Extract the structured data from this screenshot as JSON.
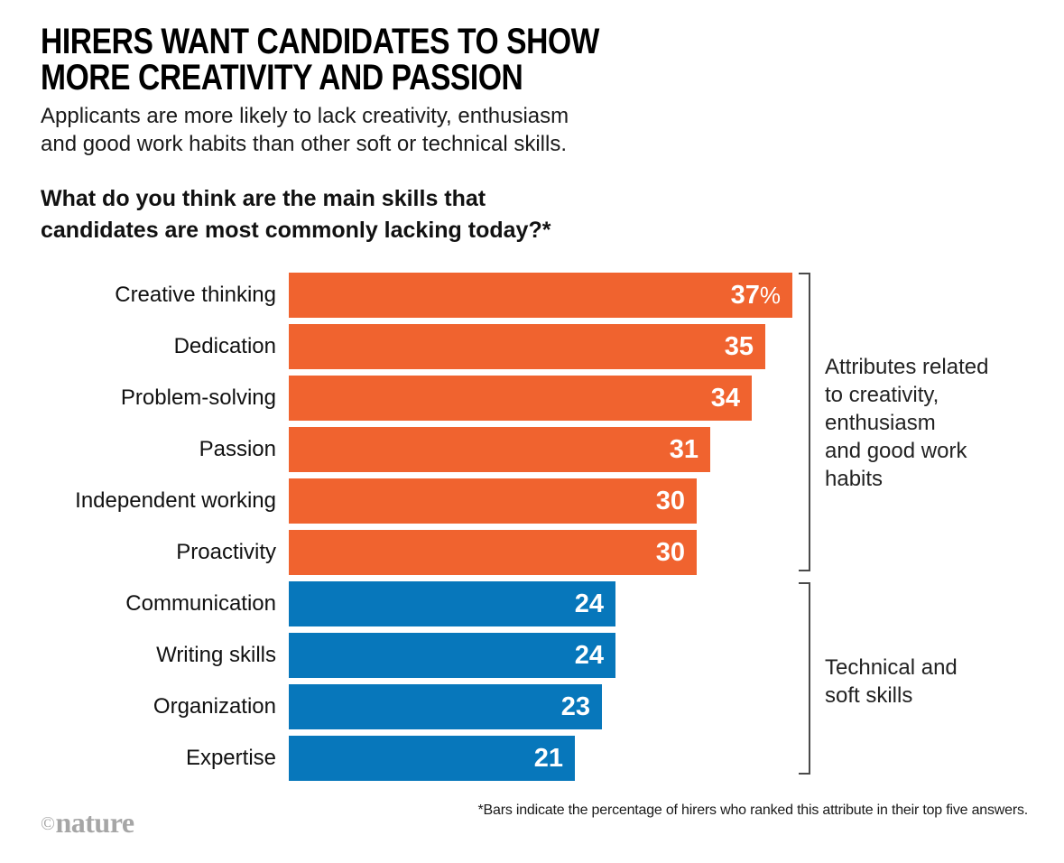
{
  "header": {
    "title": "HIRERS WANT CANDIDATES TO SHOW\nMORE CREATIVITY AND PASSION",
    "subtitle": "Applicants are more likely to lack creativity, enthusiasm\nand good work habits than other soft or technical skills.",
    "question": "What do you think are the main skills that\ncandidates are most commonly lacking today?*"
  },
  "chart_data": {
    "type": "bar",
    "orientation": "horizontal",
    "title": "What do you think are the main skills that candidates are most commonly lacking today?*",
    "xlim": [
      0,
      37
    ],
    "unit": "percent",
    "categories": [
      "Creative thinking",
      "Dedication",
      "Problem-solving",
      "Passion",
      "Independent working",
      "Proactivity",
      "Communication",
      "Writing skills",
      "Organization",
      "Expertise"
    ],
    "values": [
      37,
      35,
      34,
      31,
      30,
      30,
      24,
      24,
      23,
      21
    ],
    "bars": [
      {
        "label": "Creative thinking",
        "value": 37,
        "value_text": "37",
        "suffix": "%",
        "group": "creativity"
      },
      {
        "label": "Dedication",
        "value": 35,
        "value_text": "35",
        "suffix": "",
        "group": "creativity"
      },
      {
        "label": "Problem-solving",
        "value": 34,
        "value_text": "34",
        "suffix": "",
        "group": "creativity"
      },
      {
        "label": "Passion",
        "value": 31,
        "value_text": "31",
        "suffix": "",
        "group": "creativity"
      },
      {
        "label": "Independent working",
        "value": 30,
        "value_text": "30",
        "suffix": "",
        "group": "creativity"
      },
      {
        "label": "Proactivity",
        "value": 30,
        "value_text": "30",
        "suffix": "",
        "group": "creativity"
      },
      {
        "label": "Communication",
        "value": 24,
        "value_text": "24",
        "suffix": "",
        "group": "technical"
      },
      {
        "label": "Writing skills",
        "value": 24,
        "value_text": "24",
        "suffix": "",
        "group": "technical"
      },
      {
        "label": "Organization",
        "value": 23,
        "value_text": "23",
        "suffix": "",
        "group": "technical"
      },
      {
        "label": "Expertise",
        "value": 21,
        "value_text": "21",
        "suffix": "",
        "group": "technical"
      }
    ],
    "groups": [
      {
        "name": "creativity",
        "color": "#F0632F",
        "annotation": "Attributes related\nto creativity,\nenthusiasm\nand good work\nhabits"
      },
      {
        "name": "technical",
        "color": "#0777BB",
        "annotation": "Technical and\nsoft skills"
      }
    ],
    "legend_position": "right-brackets",
    "grid": false
  },
  "footer": {
    "footnote": "*Bars indicate the percentage of hirers who ranked this attribute in their top five answers.",
    "logo_prefix": "©",
    "logo": "nature"
  },
  "colors": {
    "orange": "#F0632F",
    "blue": "#0777BB",
    "bracket": "#4a4a4a",
    "logo_gray": "#a6a6a6",
    "title_black": "#000000",
    "value_text": "#ffffff"
  }
}
